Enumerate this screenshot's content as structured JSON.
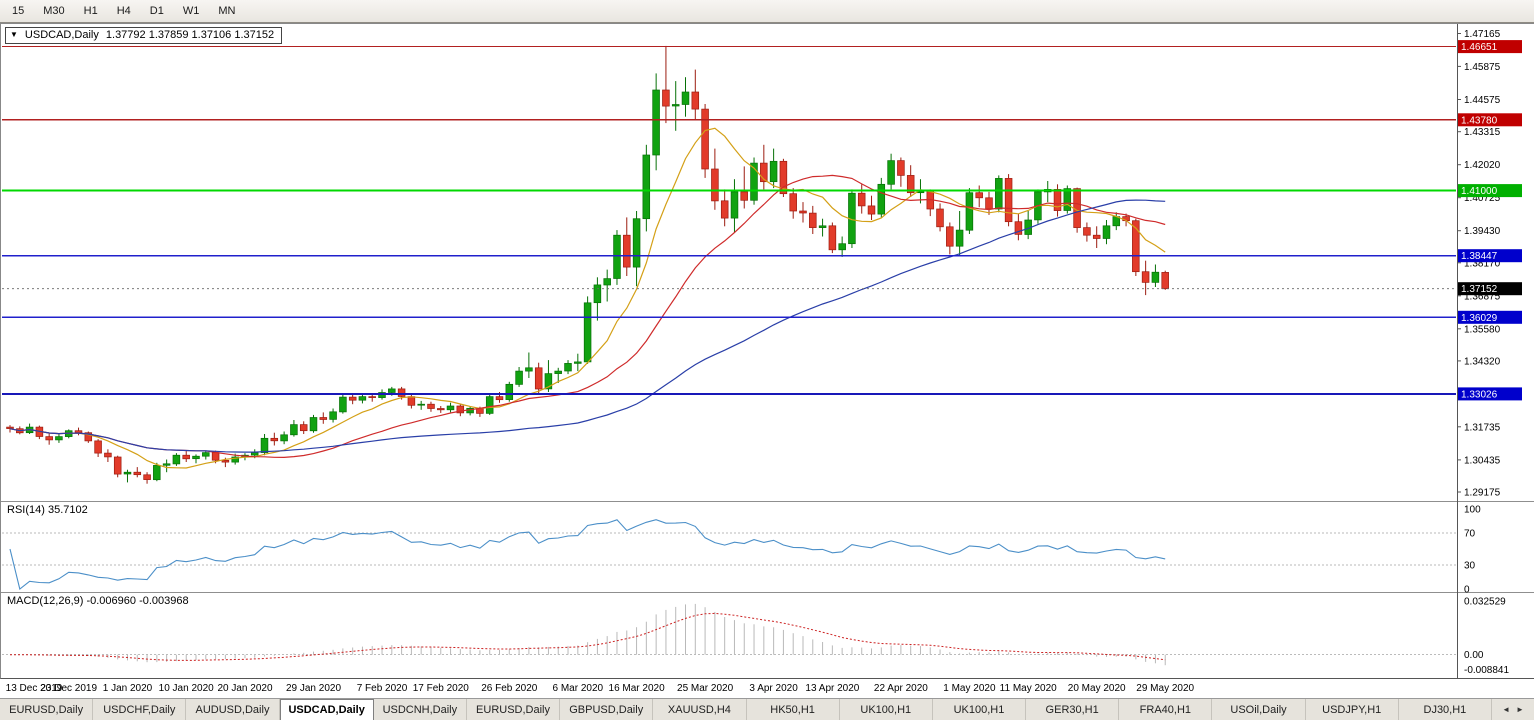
{
  "toolbar": {
    "timeframes": [
      "15",
      "M30",
      "H1",
      "H4",
      "D1",
      "W1",
      "MN"
    ]
  },
  "chart": {
    "title": {
      "collapse_icon": "▼",
      "symbol": "USDCAD,Daily",
      "quote": "1.37792 1.37859 1.37106 1.37152"
    }
  },
  "chart_data": {
    "type": "candlestick",
    "symbol": "USDCAD",
    "period": "Daily",
    "quote": {
      "open": "1.37792",
      "high": "1.37859",
      "low": "1.37106",
      "close": "1.37152"
    },
    "price_range": {
      "top": 1.475,
      "bottom": 1.289
    },
    "y_axis_ticks": [
      "1.47165",
      "1.45875",
      "1.44575",
      "1.43315",
      "1.42020",
      "1.40725",
      "1.39430",
      "1.38170",
      "1.36875",
      "1.35580",
      "1.34320",
      "1.33020",
      "1.31735",
      "1.30435",
      "1.29175"
    ],
    "levels": [
      {
        "label": "1.46651",
        "value": 1.46651,
        "line_color": "#b22020",
        "box_color": "#c00000",
        "width": 1.2
      },
      {
        "label": "1.43780",
        "value": 1.4378,
        "line_color": "#b22020",
        "box_color": "#c00000",
        "width": 1.2
      },
      {
        "label": "1.41000",
        "value": 1.41,
        "line_color": "#00d800",
        "box_color": "#00b000",
        "width": 2
      },
      {
        "label": "1.38447",
        "value": 1.38447,
        "line_color": "#2020cc",
        "box_color": "#0000cc",
        "width": 1.4
      },
      {
        "label": "1.36029",
        "value": 1.36029,
        "line_color": "#2020cc",
        "box_color": "#0000cc",
        "width": 1.4
      },
      {
        "label": "1.33026",
        "value": 1.33026,
        "line_color": "#1818b8",
        "box_color": "#0000cc",
        "width": 2
      }
    ],
    "current_price": {
      "label": "1.37152",
      "value": 1.37152
    },
    "moving_averages": [
      {
        "name": "fast-ma",
        "period": 8,
        "color": "#d4a017"
      },
      {
        "name": "medium-ma",
        "period": 21,
        "color": "#cf2b2b"
      },
      {
        "name": "slow-ma",
        "period": 55,
        "color": "#2a3fa8"
      }
    ],
    "x_labels": [
      {
        "t": "13 Dec 2019",
        "i": 0
      },
      {
        "t": "23 Dec 2019",
        "i": 6
      },
      {
        "t": "1 Jan 2020",
        "i": 12
      },
      {
        "t": "10 Jan 2020",
        "i": 18
      },
      {
        "t": "20 Jan 2020",
        "i": 24
      },
      {
        "t": "29 Jan 2020",
        "i": 31
      },
      {
        "t": "7 Feb 2020",
        "i": 38
      },
      {
        "t": "17 Feb 2020",
        "i": 44
      },
      {
        "t": "26 Feb 2020",
        "i": 51
      },
      {
        "t": "6 Mar 2020",
        "i": 58
      },
      {
        "t": "16 Mar 2020",
        "i": 64
      },
      {
        "t": "25 Mar 2020",
        "i": 71
      },
      {
        "t": "3 Apr 2020",
        "i": 78
      },
      {
        "t": "13 Apr 2020",
        "i": 84
      },
      {
        "t": "22 Apr 2020",
        "i": 91
      },
      {
        "t": "1 May 2020",
        "i": 98
      },
      {
        "t": "11 May 2020",
        "i": 104
      },
      {
        "t": "20 May 2020",
        "i": 111
      },
      {
        "t": "29 May 2020",
        "i": 118
      }
    ],
    "candles": [
      [
        1.3172,
        1.318,
        1.3151,
        1.3166
      ],
      [
        1.3166,
        1.3175,
        1.3144,
        1.315
      ],
      [
        1.315,
        1.3186,
        1.3145,
        1.3172
      ],
      [
        1.3172,
        1.3178,
        1.3125,
        1.3135
      ],
      [
        1.3135,
        1.315,
        1.3103,
        1.3122
      ],
      [
        1.3122,
        1.3145,
        1.311,
        1.3135
      ],
      [
        1.3135,
        1.3163,
        1.3128,
        1.3158
      ],
      [
        1.3158,
        1.317,
        1.314,
        1.315
      ],
      [
        1.315,
        1.3155,
        1.311,
        1.3118
      ],
      [
        1.3118,
        1.3125,
        1.3055,
        1.307
      ],
      [
        1.307,
        1.3085,
        1.3035,
        1.3055
      ],
      [
        1.3055,
        1.306,
        1.2975,
        1.2988
      ],
      [
        1.2988,
        1.3005,
        1.2955,
        1.2995
      ],
      [
        1.2995,
        1.3015,
        1.2975,
        1.2985
      ],
      [
        1.2985,
        1.2995,
        1.295,
        1.2966
      ],
      [
        1.2966,
        1.3032,
        1.296,
        1.3022
      ],
      [
        1.3022,
        1.3045,
        1.2995,
        1.3028
      ],
      [
        1.3028,
        1.307,
        1.302,
        1.3062
      ],
      [
        1.3062,
        1.3078,
        1.3035,
        1.3048
      ],
      [
        1.3048,
        1.3065,
        1.303,
        1.3058
      ],
      [
        1.3058,
        1.308,
        1.3045,
        1.3072
      ],
      [
        1.3072,
        1.308,
        1.303,
        1.3042
      ],
      [
        1.3042,
        1.3052,
        1.3015,
        1.3035
      ],
      [
        1.3035,
        1.3068,
        1.3025,
        1.3055
      ],
      [
        1.3055,
        1.307,
        1.3042,
        1.3062
      ],
      [
        1.3062,
        1.3085,
        1.305,
        1.3072
      ],
      [
        1.3072,
        1.3145,
        1.3062,
        1.3128
      ],
      [
        1.3128,
        1.315,
        1.31,
        1.3118
      ],
      [
        1.3118,
        1.3155,
        1.3105,
        1.3142
      ],
      [
        1.3142,
        1.32,
        1.3135,
        1.3182
      ],
      [
        1.3182,
        1.3195,
        1.3145,
        1.3158
      ],
      [
        1.3158,
        1.322,
        1.315,
        1.321
      ],
      [
        1.321,
        1.323,
        1.3185,
        1.3202
      ],
      [
        1.3202,
        1.3245,
        1.319,
        1.3232
      ],
      [
        1.3232,
        1.33,
        1.3225,
        1.329
      ],
      [
        1.329,
        1.3303,
        1.3262,
        1.3278
      ],
      [
        1.3278,
        1.3305,
        1.3265,
        1.3292
      ],
      [
        1.3292,
        1.3302,
        1.3272,
        1.3288
      ],
      [
        1.3288,
        1.332,
        1.328,
        1.3308
      ],
      [
        1.3308,
        1.333,
        1.3295,
        1.3322
      ],
      [
        1.3322,
        1.333,
        1.328,
        1.3292
      ],
      [
        1.3292,
        1.33,
        1.3245,
        1.3258
      ],
      [
        1.3258,
        1.3275,
        1.324,
        1.3262
      ],
      [
        1.3262,
        1.3272,
        1.3232,
        1.3245
      ],
      [
        1.3245,
        1.3255,
        1.3228,
        1.324
      ],
      [
        1.324,
        1.3268,
        1.323,
        1.3255
      ],
      [
        1.3255,
        1.3262,
        1.3215,
        1.3228
      ],
      [
        1.3228,
        1.3255,
        1.3218,
        1.3246
      ],
      [
        1.3246,
        1.3252,
        1.3212,
        1.3226
      ],
      [
        1.3226,
        1.3302,
        1.322,
        1.3292
      ],
      [
        1.3292,
        1.331,
        1.3268,
        1.328
      ],
      [
        1.328,
        1.335,
        1.3272,
        1.334
      ],
      [
        1.334,
        1.3408,
        1.333,
        1.3392
      ],
      [
        1.3392,
        1.3465,
        1.3365,
        1.3405
      ],
      [
        1.3405,
        1.3425,
        1.3305,
        1.3322
      ],
      [
        1.3322,
        1.3435,
        1.331,
        1.3382
      ],
      [
        1.3382,
        1.3405,
        1.3345,
        1.3392
      ],
      [
        1.3392,
        1.3435,
        1.338,
        1.3422
      ],
      [
        1.3422,
        1.346,
        1.3392,
        1.3428
      ],
      [
        1.3428,
        1.3685,
        1.342,
        1.366
      ],
      [
        1.366,
        1.376,
        1.359,
        1.373
      ],
      [
        1.373,
        1.379,
        1.3665,
        1.3755
      ],
      [
        1.3755,
        1.3945,
        1.373,
        1.3925
      ],
      [
        1.3925,
        1.3995,
        1.3765,
        1.38
      ],
      [
        1.38,
        1.402,
        1.3725,
        1.399
      ],
      [
        1.399,
        1.428,
        1.394,
        1.424
      ],
      [
        1.424,
        1.456,
        1.418,
        1.4495
      ],
      [
        1.4495,
        1.4668,
        1.4365,
        1.4432
      ],
      [
        1.4432,
        1.453,
        1.4335,
        1.4438
      ],
      [
        1.4438,
        1.4545,
        1.439,
        1.4487
      ],
      [
        1.4487,
        1.4575,
        1.438,
        1.442
      ],
      [
        1.442,
        1.444,
        1.415,
        1.4185
      ],
      [
        1.4185,
        1.4265,
        1.4025,
        1.406
      ],
      [
        1.406,
        1.4105,
        1.396,
        1.3992
      ],
      [
        1.3992,
        1.4145,
        1.3935,
        1.4095
      ],
      [
        1.4095,
        1.4195,
        1.403,
        1.4062
      ],
      [
        1.4062,
        1.423,
        1.4045,
        1.4208
      ],
      [
        1.4208,
        1.428,
        1.4105,
        1.4135
      ],
      [
        1.4135,
        1.4265,
        1.411,
        1.4215
      ],
      [
        1.4215,
        1.4225,
        1.4075,
        1.4088
      ],
      [
        1.4088,
        1.411,
        1.399,
        1.402
      ],
      [
        1.402,
        1.4055,
        1.3975,
        1.4012
      ],
      [
        1.4012,
        1.404,
        1.393,
        1.3955
      ],
      [
        1.3955,
        1.399,
        1.392,
        1.3962
      ],
      [
        1.3962,
        1.3975,
        1.3855,
        1.3868
      ],
      [
        1.3868,
        1.392,
        1.384,
        1.3892
      ],
      [
        1.3892,
        1.4105,
        1.3875,
        1.409
      ],
      [
        1.409,
        1.4125,
        1.401,
        1.404
      ],
      [
        1.404,
        1.408,
        1.3985,
        1.4008
      ],
      [
        1.4008,
        1.415,
        1.3995,
        1.4125
      ],
      [
        1.4125,
        1.4245,
        1.4105,
        1.4218
      ],
      [
        1.4218,
        1.423,
        1.4115,
        1.416
      ],
      [
        1.416,
        1.42,
        1.4075,
        1.4092
      ],
      [
        1.4092,
        1.4145,
        1.405,
        1.4098
      ],
      [
        1.4098,
        1.4105,
        1.4,
        1.4028
      ],
      [
        1.4028,
        1.405,
        1.394,
        1.3958
      ],
      [
        1.3958,
        1.3975,
        1.385,
        1.3882
      ],
      [
        1.3882,
        1.402,
        1.3845,
        1.3945
      ],
      [
        1.3945,
        1.411,
        1.393,
        1.4092
      ],
      [
        1.4092,
        1.412,
        1.4035,
        1.4072
      ],
      [
        1.4072,
        1.4095,
        1.4005,
        1.4028
      ],
      [
        1.4028,
        1.416,
        1.4015,
        1.4148
      ],
      [
        1.4148,
        1.4165,
        1.396,
        1.3978
      ],
      [
        1.3978,
        1.401,
        1.3905,
        1.3928
      ],
      [
        1.3928,
        1.402,
        1.391,
        1.3985
      ],
      [
        1.3985,
        1.4105,
        1.397,
        1.4095
      ],
      [
        1.4095,
        1.4138,
        1.4055,
        1.4105
      ],
      [
        1.4105,
        1.4125,
        1.3998,
        1.4022
      ],
      [
        1.4022,
        1.412,
        1.401,
        1.4108
      ],
      [
        1.4108,
        1.4112,
        1.3935,
        1.3955
      ],
      [
        1.3955,
        1.3975,
        1.39,
        1.3925
      ],
      [
        1.3925,
        1.396,
        1.3875,
        1.3912
      ],
      [
        1.3912,
        1.3985,
        1.389,
        1.3962
      ],
      [
        1.3962,
        1.4015,
        1.3945,
        1.3998
      ],
      [
        1.3998,
        1.401,
        1.396,
        1.3982
      ],
      [
        1.3982,
        1.399,
        1.3765,
        1.3782
      ],
      [
        1.3782,
        1.3825,
        1.369,
        1.374
      ],
      [
        1.374,
        1.381,
        1.3722,
        1.378
      ],
      [
        1.37792,
        1.37859,
        1.37106,
        1.37152
      ]
    ],
    "rsi": {
      "label": "RSI(14) 35.7102",
      "period": 14,
      "value": "35.7102",
      "levels": [
        100,
        70,
        30,
        0
      ],
      "line_color": "#4b8fc8"
    },
    "macd": {
      "label": "MACD(12,26,9) -0.006960 -0.003968",
      "fast": 12,
      "slow": 26,
      "signal": 9,
      "main_value": "-0.006960",
      "signal_value": "-0.003968",
      "axis_labels": [
        {
          "label": "0.032529",
          "value": 0.032529
        },
        {
          "label": "0.00",
          "value": 0
        },
        {
          "label": "-0.008841",
          "value": -0.008841
        }
      ]
    }
  },
  "tabs": {
    "active_index": 3,
    "items": [
      "EURUSD,Daily",
      "USDCHF,Daily",
      "AUDUSD,Daily",
      "USDCAD,Daily",
      "USDCNH,Daily",
      "EURUSD,Daily",
      "GBPUSD,Daily",
      "XAUUSD,H4",
      "HK50,H1",
      "UK100,H1",
      "UK100,H1",
      "GER30,H1",
      "FRA40,H1",
      "USOil,Daily",
      "USDJPY,H1",
      "DJ30,H1"
    ],
    "nav_left": "◄",
    "nav_right": "►"
  }
}
